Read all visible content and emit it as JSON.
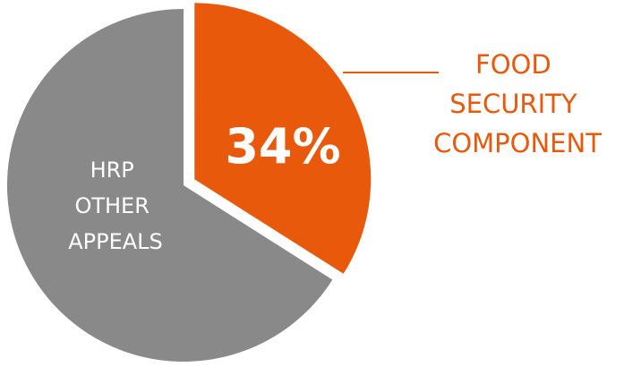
{
  "chart_data": {
    "type": "pie",
    "slices": [
      {
        "value": 34,
        "percent_label": "34%",
        "label_lines": [
          "FOOD",
          "SECURITY",
          "COMPONENT"
        ],
        "color": "#e8590c",
        "exploded": true
      },
      {
        "value": 66,
        "label_lines": [
          "HRP",
          "OTHER",
          "APPEALS"
        ],
        "color": "#898989",
        "exploded": false
      }
    ]
  },
  "colors": {
    "accent": "#e8590c",
    "muted": "#898989",
    "label_on_slice": "#ffffff"
  }
}
